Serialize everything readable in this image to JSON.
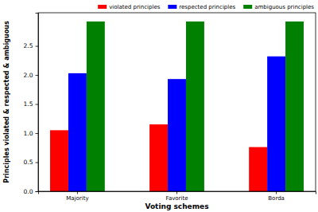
{
  "chart_data": {
    "type": "bar",
    "xlabel": "Voting schemes",
    "ylabel": "Principles violated & respected & ambiguous",
    "categories": [
      "Majority",
      "Favorite",
      "Borda"
    ],
    "series": [
      {
        "name": "violated principles",
        "color": "#ff0000",
        "values": [
          1.05,
          1.15,
          0.76
        ]
      },
      {
        "name": "respected principles",
        "color": "#0000ff",
        "values": [
          2.03,
          1.93,
          2.32
        ]
      },
      {
        "name": "ambiguous principles",
        "color": "#008000",
        "values": [
          2.92,
          2.92,
          2.92
        ]
      }
    ],
    "ylim": [
      0,
      3.07
    ],
    "yticks": [
      {
        "value": 0,
        "label": "0.0"
      },
      {
        "value": 0.5,
        "label": "0.5"
      },
      {
        "value": 1,
        "label": "1.0"
      },
      {
        "value": 1.5,
        "label": "1.5"
      },
      {
        "value": 2,
        "label": "2.0"
      },
      {
        "value": 2.5,
        "label": "2.5"
      }
    ],
    "legend": "upper right"
  }
}
